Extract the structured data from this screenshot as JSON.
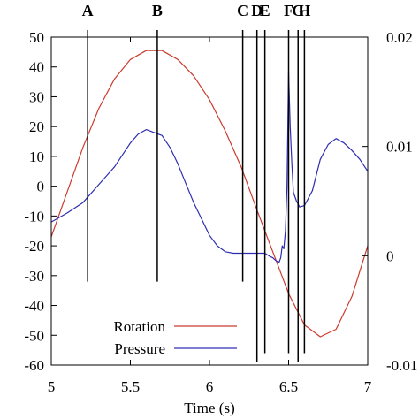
{
  "chart_data": {
    "type": "line",
    "xlabel": "Time (s)",
    "xlim": [
      5,
      7
    ],
    "ylim": [
      -60,
      50
    ],
    "y2lim": [
      -0.01,
      0.02
    ],
    "x_ticks": [
      {
        "value": 5,
        "label": "5"
      },
      {
        "value": 5.5,
        "label": "5.5"
      },
      {
        "value": 6,
        "label": "6"
      },
      {
        "value": 6.5,
        "label": "6.5"
      },
      {
        "value": 7,
        "label": "7"
      }
    ],
    "y_ticks": [
      {
        "value": 50,
        "label": "50"
      },
      {
        "value": 40,
        "label": "40"
      },
      {
        "value": 30,
        "label": "30"
      },
      {
        "value": 20,
        "label": "20"
      },
      {
        "value": 10,
        "label": "10"
      },
      {
        "value": 0,
        "label": "0"
      },
      {
        "value": -10,
        "label": "-10"
      },
      {
        "value": -20,
        "label": "-20"
      },
      {
        "value": -30,
        "label": "-30"
      },
      {
        "value": -40,
        "label": "-40"
      },
      {
        "value": -50,
        "label": "-50"
      },
      {
        "value": -60,
        "label": "-60"
      }
    ],
    "y2_ticks": [
      {
        "value": 0.02,
        "label": "0.02"
      },
      {
        "value": 0.01,
        "label": "0.01"
      },
      {
        "value": 0,
        "label": "0"
      },
      {
        "value": -0.01,
        "label": "-0.01"
      }
    ],
    "markers": [
      {
        "label": "A",
        "x": 5.23,
        "y_bottom": -32
      },
      {
        "label": "B",
        "x": 5.67,
        "y_bottom": -32
      },
      {
        "label": "C",
        "x": 6.21,
        "y_bottom": -32
      },
      {
        "label": "D",
        "x": 6.3,
        "y_bottom": -59
      },
      {
        "label": "E",
        "x": 6.35,
        "y_bottom": -56
      },
      {
        "label": "F",
        "x": 6.5,
        "y_bottom": -56
      },
      {
        "label": "G",
        "x": 6.56,
        "y_bottom": -59
      },
      {
        "label": "H",
        "x": 6.6,
        "y_bottom": -56
      }
    ],
    "series": [
      {
        "name": "Rotation",
        "color": "#cc3b2e",
        "x": [
          5.0,
          5.1,
          5.2,
          5.3,
          5.4,
          5.5,
          5.6,
          5.7,
          5.8,
          5.9,
          6.0,
          6.1,
          6.2,
          6.3,
          6.4,
          6.5,
          6.6,
          6.7,
          6.8,
          6.9,
          7.0
        ],
        "y": [
          -17,
          -2,
          13,
          26,
          36,
          42.5,
          45.5,
          45.5,
          42.5,
          37,
          29,
          18.5,
          6.5,
          -8,
          -22,
          -36,
          -46.5,
          -50.5,
          -48,
          -37,
          -20
        ]
      },
      {
        "name": "Pressure",
        "color": "#2d2db3",
        "x": [
          5.0,
          5.1,
          5.2,
          5.3,
          5.4,
          5.5,
          5.55,
          5.6,
          5.65,
          5.7,
          5.75,
          5.8,
          5.85,
          5.9,
          5.95,
          6.0,
          6.05,
          6.1,
          6.15,
          6.2,
          6.25,
          6.3,
          6.35,
          6.38,
          6.4,
          6.42,
          6.44,
          6.45,
          6.46,
          6.47,
          6.48,
          6.49,
          6.5,
          6.51,
          6.52,
          6.53,
          6.55,
          6.57,
          6.6,
          6.65,
          6.7,
          6.75,
          6.8,
          6.85,
          6.9,
          6.95,
          7.0
        ],
        "y": [
          -12,
          -9,
          -5.5,
          0.5,
          6.5,
          14.5,
          17.5,
          19,
          18,
          17,
          13,
          7.5,
          1,
          -5.5,
          -11,
          -16.5,
          -20,
          -22,
          -22.5,
          -22.5,
          -22.5,
          -22.5,
          -22.5,
          -23.5,
          -24,
          -25,
          -25.5,
          -24,
          -20,
          -21,
          -15,
          0,
          38,
          20,
          8,
          -2,
          -5,
          -7,
          -6.5,
          -1.5,
          9,
          14,
          16,
          14.5,
          12,
          9,
          5
        ]
      }
    ],
    "legend": {
      "placement": "bottom-left"
    }
  }
}
